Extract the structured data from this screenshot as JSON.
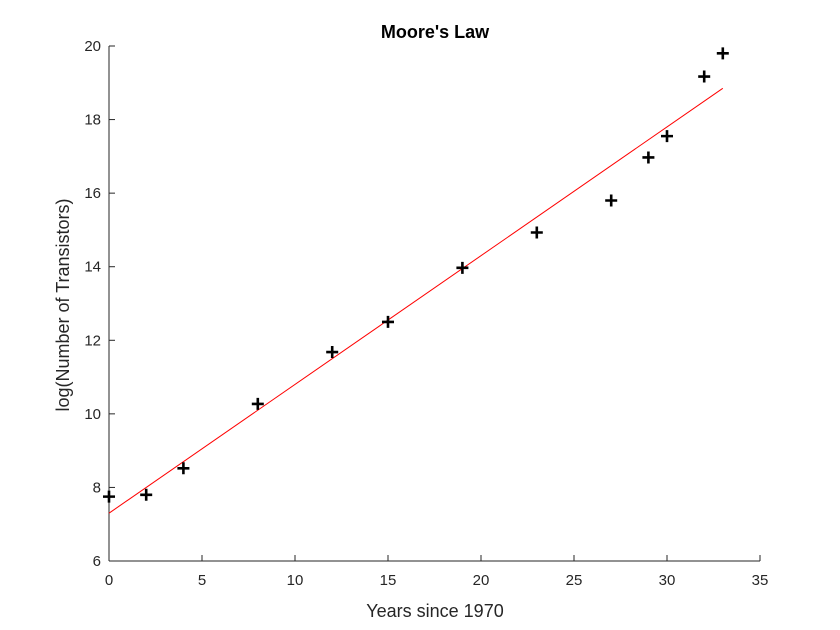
{
  "chart_data": {
    "type": "scatter",
    "title": "Moore's Law",
    "xlabel": "Years since 1970",
    "ylabel": "log(Number of Transistors)",
    "xlim": [
      0,
      35
    ],
    "ylim": [
      6,
      20
    ],
    "xticks": [
      0,
      5,
      10,
      15,
      20,
      25,
      30,
      35
    ],
    "yticks": [
      6,
      8,
      10,
      12,
      14,
      16,
      18,
      20
    ],
    "grid": false,
    "series": [
      {
        "type": "scatter",
        "marker": "+",
        "color": "#000000",
        "points": [
          {
            "x": 0,
            "y": 7.75
          },
          {
            "x": 2,
            "y": 7.8
          },
          {
            "x": 4,
            "y": 8.52
          },
          {
            "x": 8,
            "y": 10.27
          },
          {
            "x": 12,
            "y": 11.68
          },
          {
            "x": 15,
            "y": 12.5
          },
          {
            "x": 19,
            "y": 13.97
          },
          {
            "x": 23,
            "y": 14.93
          },
          {
            "x": 27,
            "y": 15.8
          },
          {
            "x": 29,
            "y": 16.97
          },
          {
            "x": 30,
            "y": 17.55
          },
          {
            "x": 32,
            "y": 19.17
          },
          {
            "x": 33,
            "y": 19.8
          }
        ]
      },
      {
        "type": "line",
        "color": "#ff0000",
        "points": [
          {
            "x": 0,
            "y": 7.3
          },
          {
            "x": 33,
            "y": 18.85
          }
        ]
      }
    ]
  }
}
